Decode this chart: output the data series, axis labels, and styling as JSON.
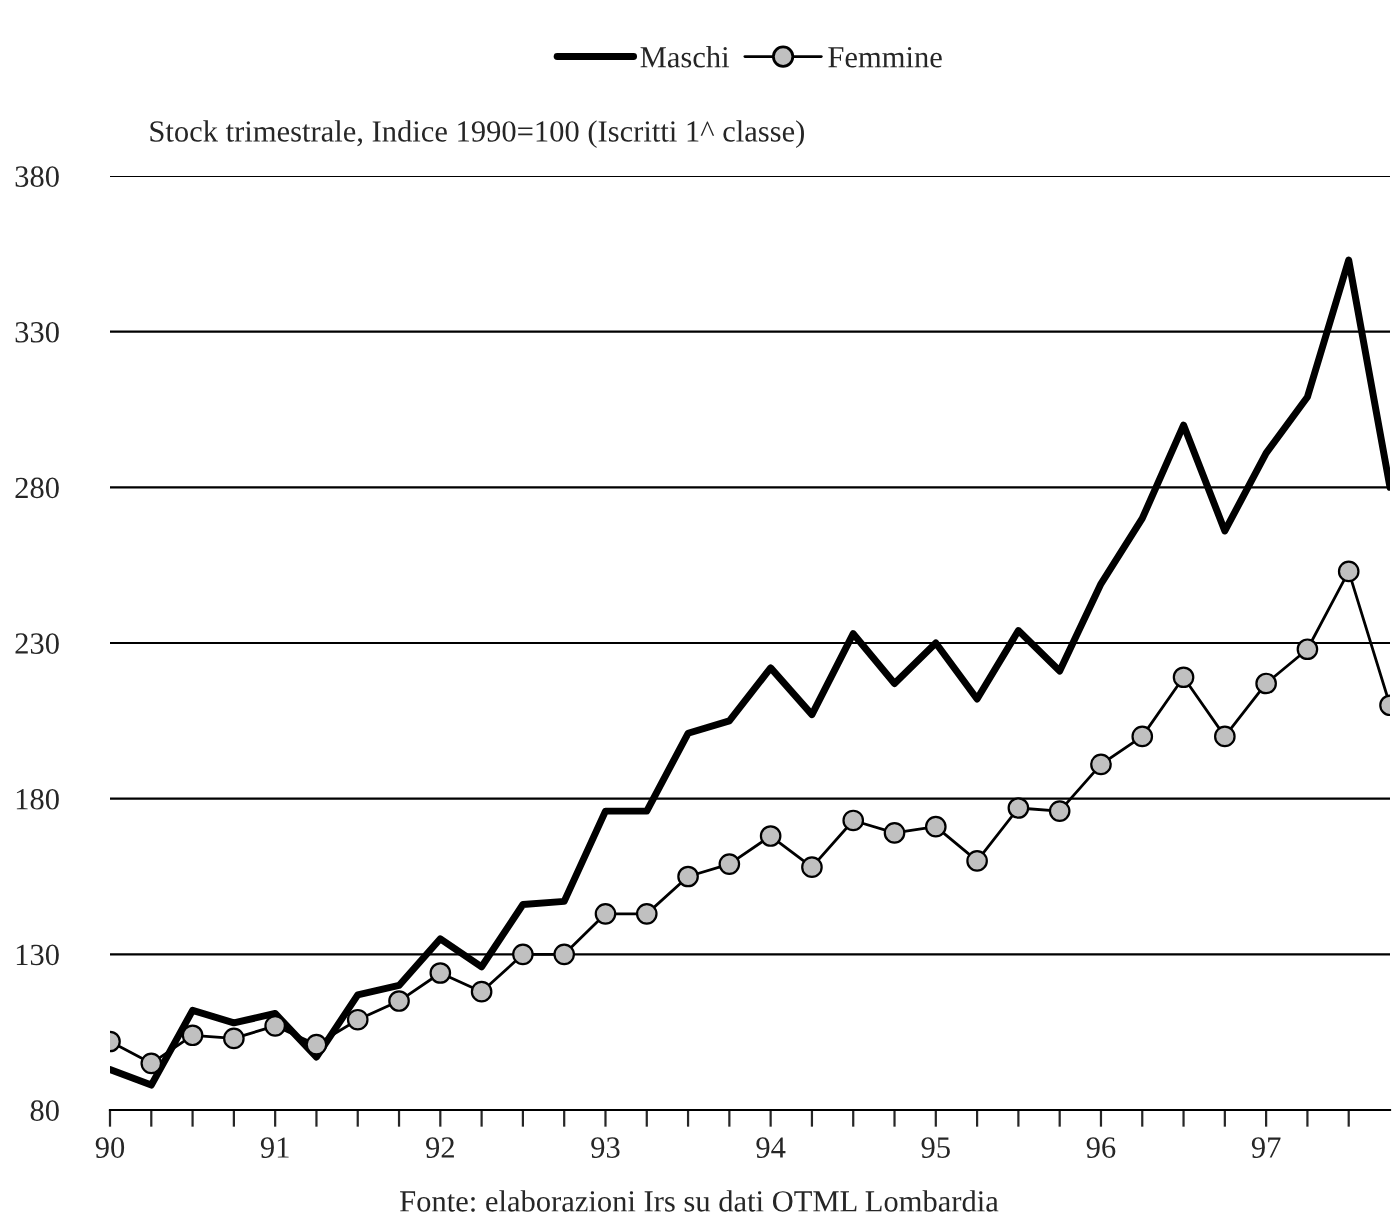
{
  "chart_data": {
    "type": "line",
    "subtitle": "Stock trimestrale, Indice 1990=100 (Iscritti 1^ classe)",
    "x": [
      90,
      90.25,
      90.5,
      90.75,
      91,
      91.25,
      91.5,
      91.75,
      92,
      92.25,
      92.5,
      92.75,
      93,
      93.25,
      93.5,
      93.75,
      94,
      94.25,
      94.5,
      94.75,
      95,
      95.25,
      95.5,
      95.75,
      96,
      96.25,
      96.5,
      96.75,
      97,
      97.25,
      97.5,
      97.75
    ],
    "series": [
      {
        "name": "Maschi",
        "color": "#000000",
        "marker": "none",
        "values": [
          93,
          88,
          112,
          108,
          111,
          97,
          117,
          120,
          135,
          126,
          146,
          147,
          176,
          176,
          201,
          205,
          222,
          207,
          233,
          217,
          230,
          212,
          234,
          221,
          249,
          270,
          300,
          266,
          291,
          309,
          353,
          280
        ]
      },
      {
        "name": "Femmine",
        "color": "#000000",
        "marker": "circle",
        "values": [
          102,
          95,
          104,
          103,
          107,
          101,
          109,
          115,
          124,
          118,
          130,
          130,
          143,
          143,
          155,
          159,
          168,
          158,
          173,
          169,
          171,
          160,
          177,
          176,
          191,
          200,
          219,
          200,
          217,
          228,
          253,
          210
        ]
      }
    ],
    "xlim": [
      90,
      97.75
    ],
    "xticks": [
      90,
      {
        "value": 90.25,
        "label": null
      },
      {
        "value": 90.5,
        "label": null
      },
      {
        "value": 90.75,
        "label": null
      },
      91,
      {
        "value": 91.25,
        "label": null
      },
      {
        "value": 91.5,
        "label": null
      },
      {
        "value": 91.75,
        "label": null
      },
      92,
      {
        "value": 92.25,
        "label": null
      },
      {
        "value": 92.5,
        "label": null
      },
      {
        "value": 92.75,
        "label": null
      },
      93,
      {
        "value": 93.25,
        "label": null
      },
      {
        "value": 93.5,
        "label": null
      },
      {
        "value": 93.75,
        "label": null
      },
      94,
      {
        "value": 94.25,
        "label": null
      },
      {
        "value": 94.5,
        "label": null
      },
      {
        "value": 94.75,
        "label": null
      },
      95,
      {
        "value": 95.25,
        "label": null
      },
      {
        "value": 95.5,
        "label": null
      },
      {
        "value": 95.75,
        "label": null
      },
      96,
      {
        "value": 96.25,
        "label": null
      },
      {
        "value": 96.5,
        "label": null
      },
      {
        "value": 96.75,
        "label": null
      },
      97,
      {
        "value": 97.25,
        "label": null
      },
      {
        "value": 97.5,
        "label": null
      }
    ],
    "ylim": [
      80,
      380
    ],
    "yticks": [
      80,
      130,
      180,
      230,
      280,
      330,
      380
    ],
    "grid": "y",
    "legend": "top",
    "line_style": "solid",
    "annotations": [
      "Fonte: elaborazioni Irs su dati OTML Lombardia"
    ]
  }
}
